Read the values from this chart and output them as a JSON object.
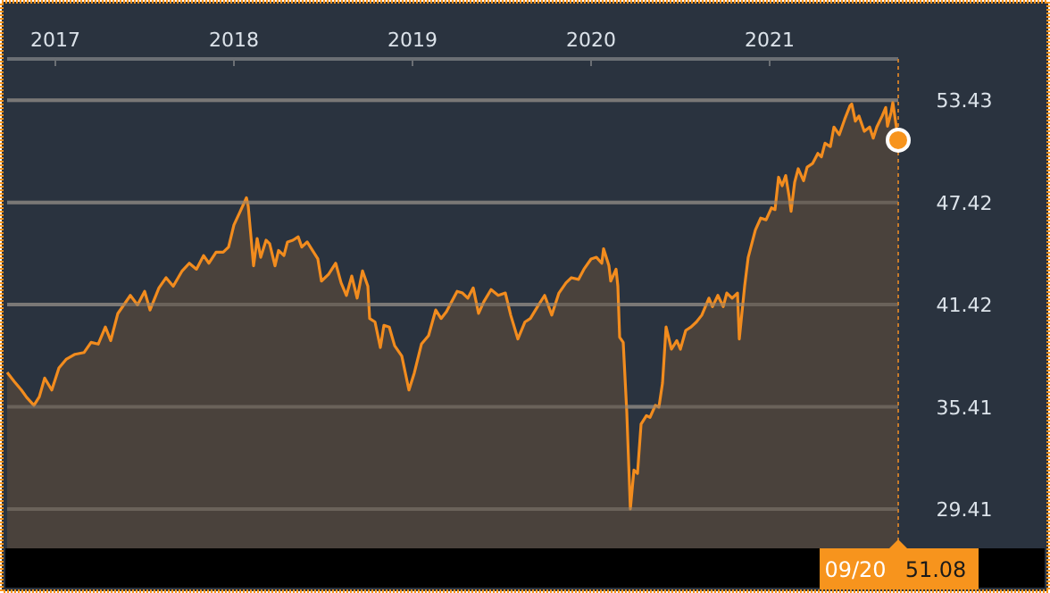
{
  "chart_data": {
    "type": "area",
    "x": [
      2016.73,
      2016.77,
      2016.81,
      2016.84,
      2016.88,
      2016.91,
      2016.94,
      2016.98,
      2017.02,
      2017.06,
      2017.11,
      2017.16,
      2017.2,
      2017.24,
      2017.28,
      2017.31,
      2017.35,
      2017.39,
      2017.42,
      2017.46,
      2017.5,
      2017.53,
      2017.58,
      2017.62,
      2017.66,
      2017.71,
      2017.75,
      2017.79,
      2017.83,
      2017.86,
      2017.9,
      2017.94,
      2017.97,
      2018.0,
      2018.04,
      2018.07,
      2018.08,
      2018.11,
      2018.13,
      2018.15,
      2018.18,
      2018.2,
      2018.23,
      2018.25,
      2018.28,
      2018.3,
      2018.33,
      2018.36,
      2018.38,
      2018.41,
      2018.44,
      2018.47,
      2018.49,
      2018.53,
      2018.57,
      2018.6,
      2018.63,
      2018.66,
      2018.69,
      2018.72,
      2018.75,
      2018.76,
      2018.79,
      2018.82,
      2018.84,
      2018.87,
      2018.9,
      2018.94,
      2018.98,
      2019.01,
      2019.05,
      2019.09,
      2019.13,
      2019.16,
      2019.19,
      2019.22,
      2019.25,
      2019.28,
      2019.31,
      2019.34,
      2019.37,
      2019.4,
      2019.44,
      2019.48,
      2019.52,
      2019.55,
      2019.59,
      2019.63,
      2019.66,
      2019.7,
      2019.74,
      2019.78,
      2019.82,
      2019.86,
      2019.89,
      2019.93,
      2019.96,
      2020.0,
      2020.03,
      2020.06,
      2020.07,
      2020.1,
      2020.11,
      2020.14,
      2020.15,
      2020.16,
      2020.18,
      2020.2,
      2020.22,
      2020.24,
      2020.26,
      2020.28,
      2020.31,
      2020.33,
      2020.36,
      2020.38,
      2020.4,
      2020.42,
      2020.45,
      2020.48,
      2020.5,
      2020.53,
      2020.56,
      2020.59,
      2020.62,
      2020.66,
      2020.68,
      2020.71,
      2020.74,
      2020.76,
      2020.79,
      2020.82,
      2020.83,
      2020.86,
      2020.88,
      2020.92,
      2020.95,
      2020.98,
      2021.01,
      2021.03,
      2021.05,
      2021.07,
      2021.09,
      2021.11,
      2021.12,
      2021.14,
      2021.16,
      2021.19,
      2021.21,
      2021.24,
      2021.27,
      2021.29,
      2021.31,
      2021.34,
      2021.36,
      2021.39,
      2021.42,
      2021.45,
      2021.46,
      2021.48,
      2021.5,
      2021.53,
      2021.56,
      2021.58,
      2021.6,
      2021.63,
      2021.65,
      2021.66,
      2021.68,
      2021.69,
      2021.72
    ],
    "series": [
      {
        "color": "#f28c1e",
        "values": [
          37.43,
          36.9,
          36.4,
          35.96,
          35.5,
          36.0,
          37.1,
          36.4,
          37.7,
          38.2,
          38.5,
          38.6,
          39.2,
          39.1,
          40.1,
          39.3,
          40.9,
          41.5,
          41.96,
          41.4,
          42.2,
          41.1,
          42.4,
          43.0,
          42.5,
          43.4,
          43.85,
          43.5,
          44.3,
          43.85,
          44.5,
          44.5,
          44.8,
          46.1,
          47.0,
          47.7,
          47.2,
          43.7,
          45.3,
          44.2,
          45.2,
          45.0,
          43.7,
          44.6,
          44.3,
          45.1,
          45.2,
          45.4,
          44.8,
          45.1,
          44.6,
          44.1,
          42.8,
          43.2,
          43.85,
          42.7,
          41.96,
          43.1,
          41.8,
          43.4,
          42.5,
          40.6,
          40.4,
          38.9,
          40.2,
          40.1,
          39.0,
          38.4,
          36.4,
          37.4,
          39.1,
          39.6,
          41.1,
          40.6,
          41.0,
          41.6,
          42.2,
          42.1,
          41.8,
          42.4,
          40.9,
          41.6,
          42.3,
          41.96,
          42.1,
          40.8,
          39.4,
          40.4,
          40.6,
          41.3,
          41.96,
          40.8,
          42.1,
          42.7,
          43.0,
          42.9,
          43.5,
          44.1,
          44.2,
          43.85,
          44.7,
          43.7,
          42.8,
          43.5,
          42.5,
          39.5,
          39.2,
          35.1,
          29.41,
          31.7,
          31.5,
          34.4,
          34.9,
          34.8,
          35.5,
          35.4,
          36.8,
          40.1,
          38.8,
          39.3,
          38.8,
          39.9,
          40.1,
          40.4,
          40.8,
          41.8,
          41.3,
          41.96,
          41.3,
          42.1,
          41.8,
          42.1,
          39.4,
          42.5,
          44.2,
          45.8,
          46.5,
          46.4,
          47.1,
          47.0,
          48.9,
          48.4,
          49.0,
          47.7,
          46.9,
          48.6,
          49.4,
          48.7,
          49.5,
          49.7,
          50.3,
          50.1,
          50.9,
          50.7,
          51.85,
          51.4,
          52.3,
          53.1,
          53.2,
          52.2,
          52.5,
          51.6,
          51.85,
          51.2,
          51.85,
          52.5,
          53.0,
          51.9,
          52.7,
          53.3,
          51.08
        ]
      }
    ],
    "xlim": [
      2016.73,
      2021.72
    ],
    "xticks": [
      2017,
      2018,
      2019,
      2020,
      2021
    ],
    "ylim": [
      27.1,
      55.85
    ],
    "yticks": [
      29.41,
      35.41,
      41.42,
      47.42,
      53.43
    ],
    "grid": "y",
    "annotations": [
      "09/20",
      "51.08"
    ]
  }
}
